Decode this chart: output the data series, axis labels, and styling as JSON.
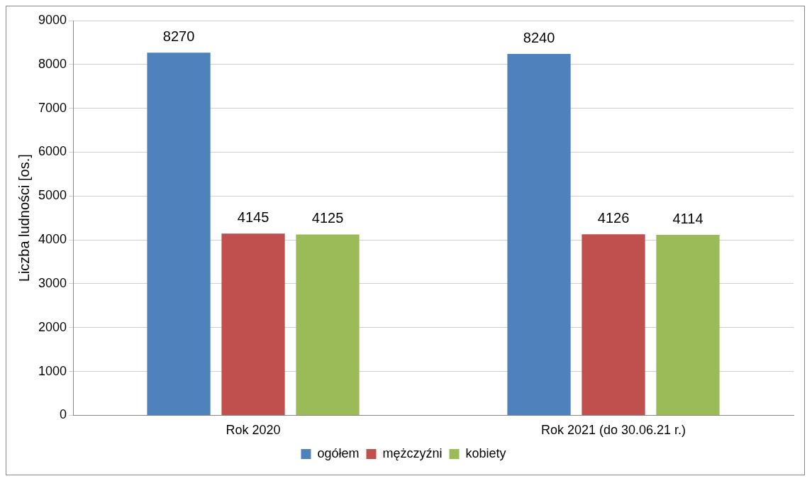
{
  "chart_data": {
    "type": "bar",
    "ylabel": "Liczba ludności [os.]",
    "categories": [
      "Rok 2020",
      "Rok 2021 (do 30.06.21 r.)"
    ],
    "series": [
      {
        "name": "ogółem",
        "color": "#4f81bd",
        "values": [
          8270,
          8240
        ]
      },
      {
        "name": "mężczyźni",
        "color": "#c0504d",
        "values": [
          4145,
          4126
        ]
      },
      {
        "name": "kobiety",
        "color": "#9bbb59",
        "values": [
          4125,
          4114
        ]
      }
    ],
    "ylim": [
      0,
      9000
    ],
    "yticks": [
      0,
      1000,
      2000,
      3000,
      4000,
      5000,
      6000,
      7000,
      8000,
      9000
    ],
    "grid": "y",
    "legend": "bottom",
    "data_labels": true
  }
}
